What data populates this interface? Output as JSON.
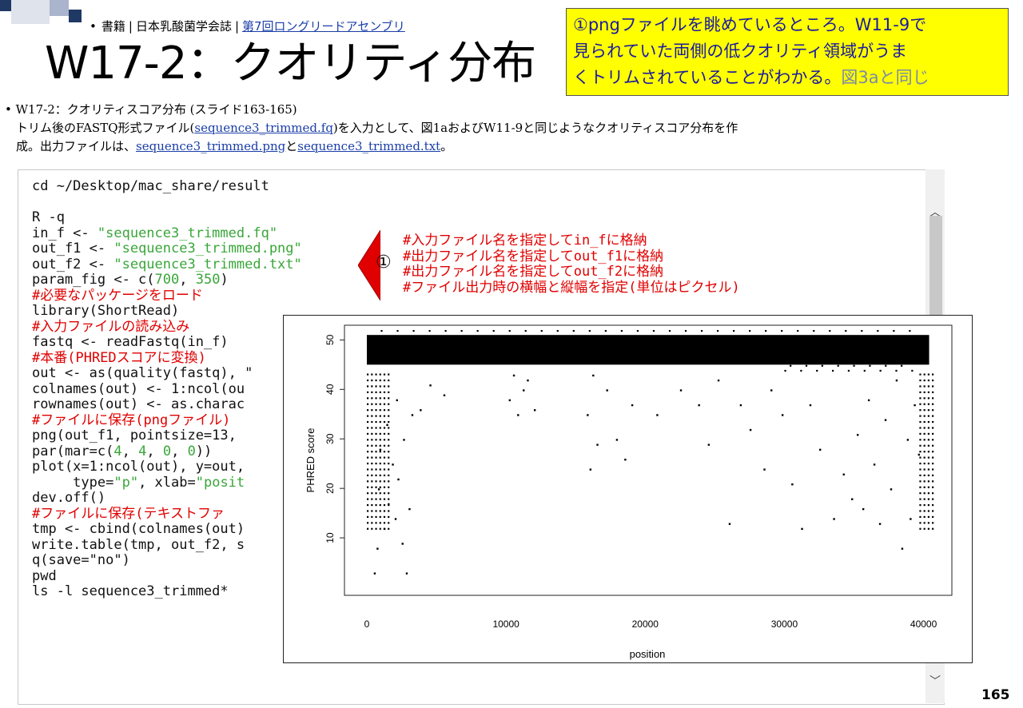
{
  "header": {
    "bullet": "•",
    "breadcrumb": [
      "書籍",
      "日本乳酸菌学会誌",
      "第7回ロングリードアセンブリ"
    ],
    "title": "W17-2：クオリティ分布"
  },
  "callout": {
    "line1": "①pngファイルを眺めているところ。W11-9で",
    "line2": "見られていた両側の低クオリティ領域がうま",
    "line3a": "くトリムされていることがわかる。",
    "line3b": "図3aと同じ"
  },
  "description": {
    "bullet_line": "• W17-2：クオリティスコア分布 (スライド163-165)",
    "p1_a": "トリム後のFASTQ形式ファイル(",
    "p1_link": "sequence3_trimmed.fq",
    "p1_b": ")を入力として、図1aおよびW11-9と同じようなクオリティスコア分布を作",
    "p2_a": "成。出力ファイルは、",
    "p2_link1": "sequence3_trimmed.png",
    "p2_mid": "と",
    "p2_link2": "sequence3_trimmed.txt",
    "p2_end": "。"
  },
  "code": {
    "l1": "cd ~/Desktop/mac_share/result",
    "l2": "R -q",
    "l3a": "in_f <- ",
    "l3b": "\"sequence3_trimmed.fq\"",
    "l4a": "out_f1 <- ",
    "l4b": "\"sequence3_trimmed.png\"",
    "l5a": "out_f2 <- ",
    "l5b": "\"sequence3_trimmed.txt\"",
    "l6a": "param_fig <- c(",
    "l6b": "700",
    "l6c": ", ",
    "l6d": "350",
    "l6e": ")",
    "l7": "#必要なパッケージをロード",
    "l8": "library(ShortRead)",
    "l9": "#入力ファイルの読み込み",
    "l10": "fastq <- readFastq(in_f)",
    "l11": "#本番(PHREDスコアに変換)",
    "l12": "out <- as(quality(fastq), \"",
    "l13": "colnames(out) <- 1:ncol(ou",
    "l14": "rownames(out) <- as.charac",
    "l15": "#ファイルに保存(pngファイル)",
    "l16": "png(out_f1, pointsize=13, ",
    "l17a": "par(mar=c(",
    "l17b": "4",
    "l17c": ", ",
    "l17d": "4",
    "l17e": ", ",
    "l17f": "0",
    "l17g": ", ",
    "l17h": "0",
    "l17i": "))",
    "l18": "plot(x=1:ncol(out), y=out,",
    "l19a": "     type=",
    "l19b": "\"p\"",
    "l19c": ", xlab=",
    "l19d": "\"posit",
    "l20": "dev.off()",
    "l21": "#ファイルに保存(テキストファ",
    "l22": "tmp <- cbind(colnames(out)",
    "l23": "write.table(tmp, out_f2, s",
    "l24": "q(save=\"no\")",
    "l25": "pwd",
    "l26": "ls -l sequence3_trimmed*"
  },
  "comments": [
    "#入力ファイル名を指定してin_fに格納",
    "#出力ファイル名を指定してout_f1に格納",
    "#出力ファイル名を指定してout_f2に格納",
    "#ファイル出力時の横幅と縦幅を指定(単位はピクセル)"
  ],
  "marker": "①",
  "page_number": "165",
  "chart_data": {
    "type": "scatter",
    "xlabel": "position",
    "ylabel": "PHRED score",
    "xlim": [
      0,
      41000
    ],
    "ylim": [
      0,
      52
    ],
    "xticks": [
      "0",
      "10000",
      "20000",
      "30000",
      "40000"
    ],
    "yticks": [
      "10",
      "20",
      "30",
      "40",
      "50"
    ],
    "xtick_values": [
      0,
      10000,
      20000,
      30000,
      40000
    ],
    "ytick_values": [
      10,
      20,
      30,
      40,
      50
    ],
    "dense_band": [
      45,
      51
    ],
    "points": [
      [
        500,
        3
      ],
      [
        2800,
        3
      ],
      [
        700,
        8
      ],
      [
        2500,
        9
      ],
      [
        1200,
        12
      ],
      [
        2000,
        14
      ],
      [
        1500,
        17
      ],
      [
        3000,
        16
      ],
      [
        800,
        20
      ],
      [
        2200,
        22
      ],
      [
        1800,
        25
      ],
      [
        900,
        28
      ],
      [
        2600,
        30
      ],
      [
        1400,
        33
      ],
      [
        3200,
        35
      ],
      [
        2100,
        38
      ],
      [
        4500,
        41
      ],
      [
        3800,
        36
      ],
      [
        5500,
        39
      ],
      [
        10200,
        38
      ],
      [
        10800,
        35
      ],
      [
        11500,
        42
      ],
      [
        10500,
        43
      ],
      [
        11200,
        40
      ],
      [
        12000,
        36
      ],
      [
        16000,
        24
      ],
      [
        16500,
        29
      ],
      [
        15800,
        35
      ],
      [
        17200,
        40
      ],
      [
        16200,
        43
      ],
      [
        17900,
        30
      ],
      [
        18500,
        26
      ],
      [
        19000,
        37
      ],
      [
        20800,
        35
      ],
      [
        22500,
        40
      ],
      [
        23800,
        37
      ],
      [
        24500,
        29
      ],
      [
        25200,
        42
      ],
      [
        26000,
        13
      ],
      [
        26800,
        37
      ],
      [
        27500,
        32
      ],
      [
        28500,
        24
      ],
      [
        29000,
        40
      ],
      [
        29800,
        35
      ],
      [
        30500,
        21
      ],
      [
        31200,
        12
      ],
      [
        31800,
        37
      ],
      [
        32500,
        28
      ],
      [
        33500,
        14
      ],
      [
        34200,
        23
      ],
      [
        34800,
        18
      ],
      [
        35200,
        31
      ],
      [
        35600,
        16
      ],
      [
        36000,
        38
      ],
      [
        36400,
        25
      ],
      [
        36800,
        13
      ],
      [
        37200,
        34
      ],
      [
        37600,
        20
      ],
      [
        38000,
        42
      ],
      [
        38400,
        8
      ],
      [
        38800,
        30
      ],
      [
        39000,
        14
      ],
      [
        39300,
        37
      ],
      [
        39600,
        27
      ]
    ]
  }
}
